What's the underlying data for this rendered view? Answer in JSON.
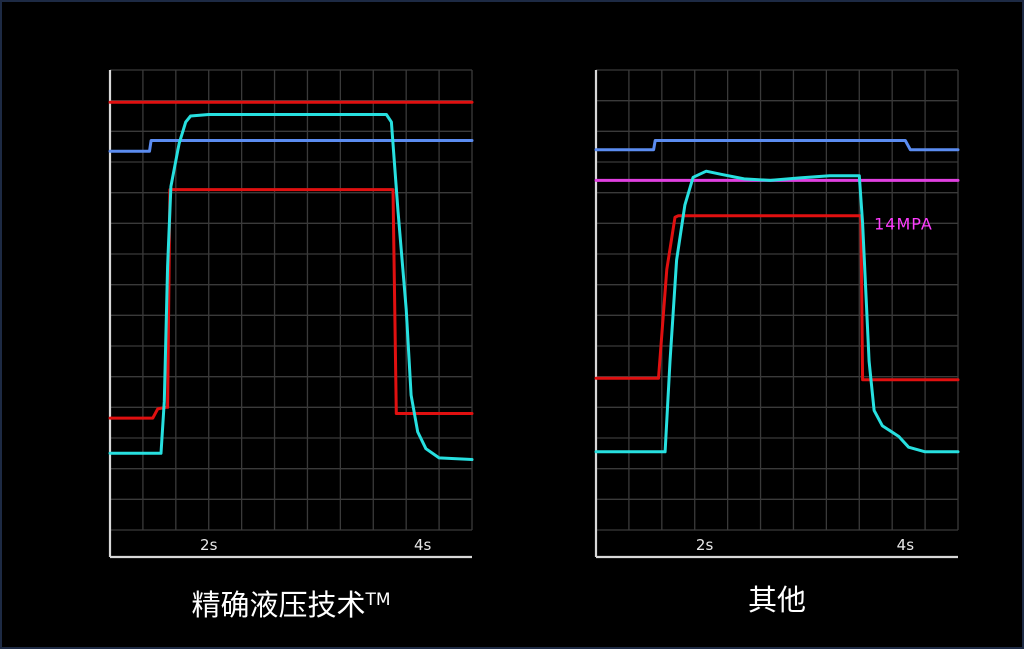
{
  "chart_data": [
    {
      "type": "line",
      "title": "精确液压技术",
      "title_mark": "TM",
      "grid": true,
      "xlim": [
        0,
        11
      ],
      "ylim": [
        0,
        15
      ],
      "x_ticks": [
        {
          "x": 3,
          "label": "2s"
        },
        {
          "x": 9.5,
          "label": "4s"
        }
      ],
      "series": [
        {
          "color": "#e01010",
          "points": [
            [
              0,
              13.95
            ],
            [
              11,
              13.95
            ]
          ]
        },
        {
          "color": "#5b8cf0",
          "points": [
            [
              0,
              12.35
            ],
            [
              1.2,
              12.35
            ],
            [
              1.25,
              12.7
            ],
            [
              11,
              12.7
            ]
          ]
        },
        {
          "color": "#e01010",
          "points": [
            [
              0,
              3.65
            ],
            [
              1.3,
              3.65
            ],
            [
              1.45,
              3.95
            ],
            [
              1.7,
              4.0
            ],
            [
              1.75,
              4.0
            ],
            [
              1.82,
              11.1
            ],
            [
              8.6,
              11.1
            ],
            [
              8.7,
              3.8
            ],
            [
              11,
              3.8
            ]
          ]
        },
        {
          "color": "#27e0e0",
          "points": [
            [
              0,
              2.5
            ],
            [
              1.55,
              2.5
            ],
            [
              1.65,
              4.2
            ],
            [
              1.75,
              8.6
            ],
            [
              1.85,
              11.2
            ],
            [
              2.1,
              12.6
            ],
            [
              2.3,
              13.3
            ],
            [
              2.45,
              13.5
            ],
            [
              3,
              13.55
            ],
            [
              8.4,
              13.55
            ],
            [
              8.55,
              13.3
            ],
            [
              8.75,
              10.4
            ],
            [
              9.0,
              7.2
            ],
            [
              9.15,
              4.4
            ],
            [
              9.35,
              3.2
            ],
            [
              9.6,
              2.65
            ],
            [
              10.0,
              2.35
            ],
            [
              11,
              2.3
            ]
          ]
        }
      ]
    },
    {
      "type": "line",
      "title": "其他",
      "grid": true,
      "xlim": [
        0,
        11
      ],
      "ylim": [
        0,
        15
      ],
      "x_ticks": [
        {
          "x": 3.3,
          "label": "2s"
        },
        {
          "x": 9.4,
          "label": "4s"
        }
      ],
      "annotations": [
        {
          "text": "14MPA",
          "color": "#ff3cff",
          "x": 8.45,
          "y": 10.0
        }
      ],
      "series": [
        {
          "color": "#e040e0",
          "points": [
            [
              0,
              11.4
            ],
            [
              11,
              11.4
            ]
          ]
        },
        {
          "color": "#5b8cf0",
          "points": [
            [
              0,
              12.4
            ],
            [
              1.75,
              12.4
            ],
            [
              1.8,
              12.7
            ],
            [
              9.4,
              12.7
            ],
            [
              9.55,
              12.4
            ],
            [
              11,
              12.4
            ]
          ]
        },
        {
          "color": "#e01010",
          "points": [
            [
              0,
              4.95
            ],
            [
              1.9,
              4.95
            ],
            [
              2.15,
              8.5
            ],
            [
              2.4,
              10.2
            ],
            [
              2.5,
              10.25
            ],
            [
              8.05,
              10.25
            ],
            [
              8.1,
              4.9
            ],
            [
              11,
              4.9
            ]
          ]
        },
        {
          "color": "#27e0e0",
          "points": [
            [
              0,
              2.55
            ],
            [
              2.1,
              2.55
            ],
            [
              2.25,
              5.5
            ],
            [
              2.45,
              8.8
            ],
            [
              2.7,
              10.6
            ],
            [
              2.95,
              11.5
            ],
            [
              3.35,
              11.7
            ],
            [
              3.8,
              11.6
            ],
            [
              4.5,
              11.45
            ],
            [
              5.3,
              11.4
            ],
            [
              6.2,
              11.48
            ],
            [
              7.1,
              11.55
            ],
            [
              8.0,
              11.55
            ],
            [
              8.1,
              10.0
            ],
            [
              8.3,
              5.5
            ],
            [
              8.45,
              3.9
            ],
            [
              8.7,
              3.4
            ],
            [
              9.2,
              3.05
            ],
            [
              9.5,
              2.7
            ],
            [
              10.0,
              2.55
            ],
            [
              11,
              2.55
            ]
          ]
        }
      ]
    }
  ]
}
